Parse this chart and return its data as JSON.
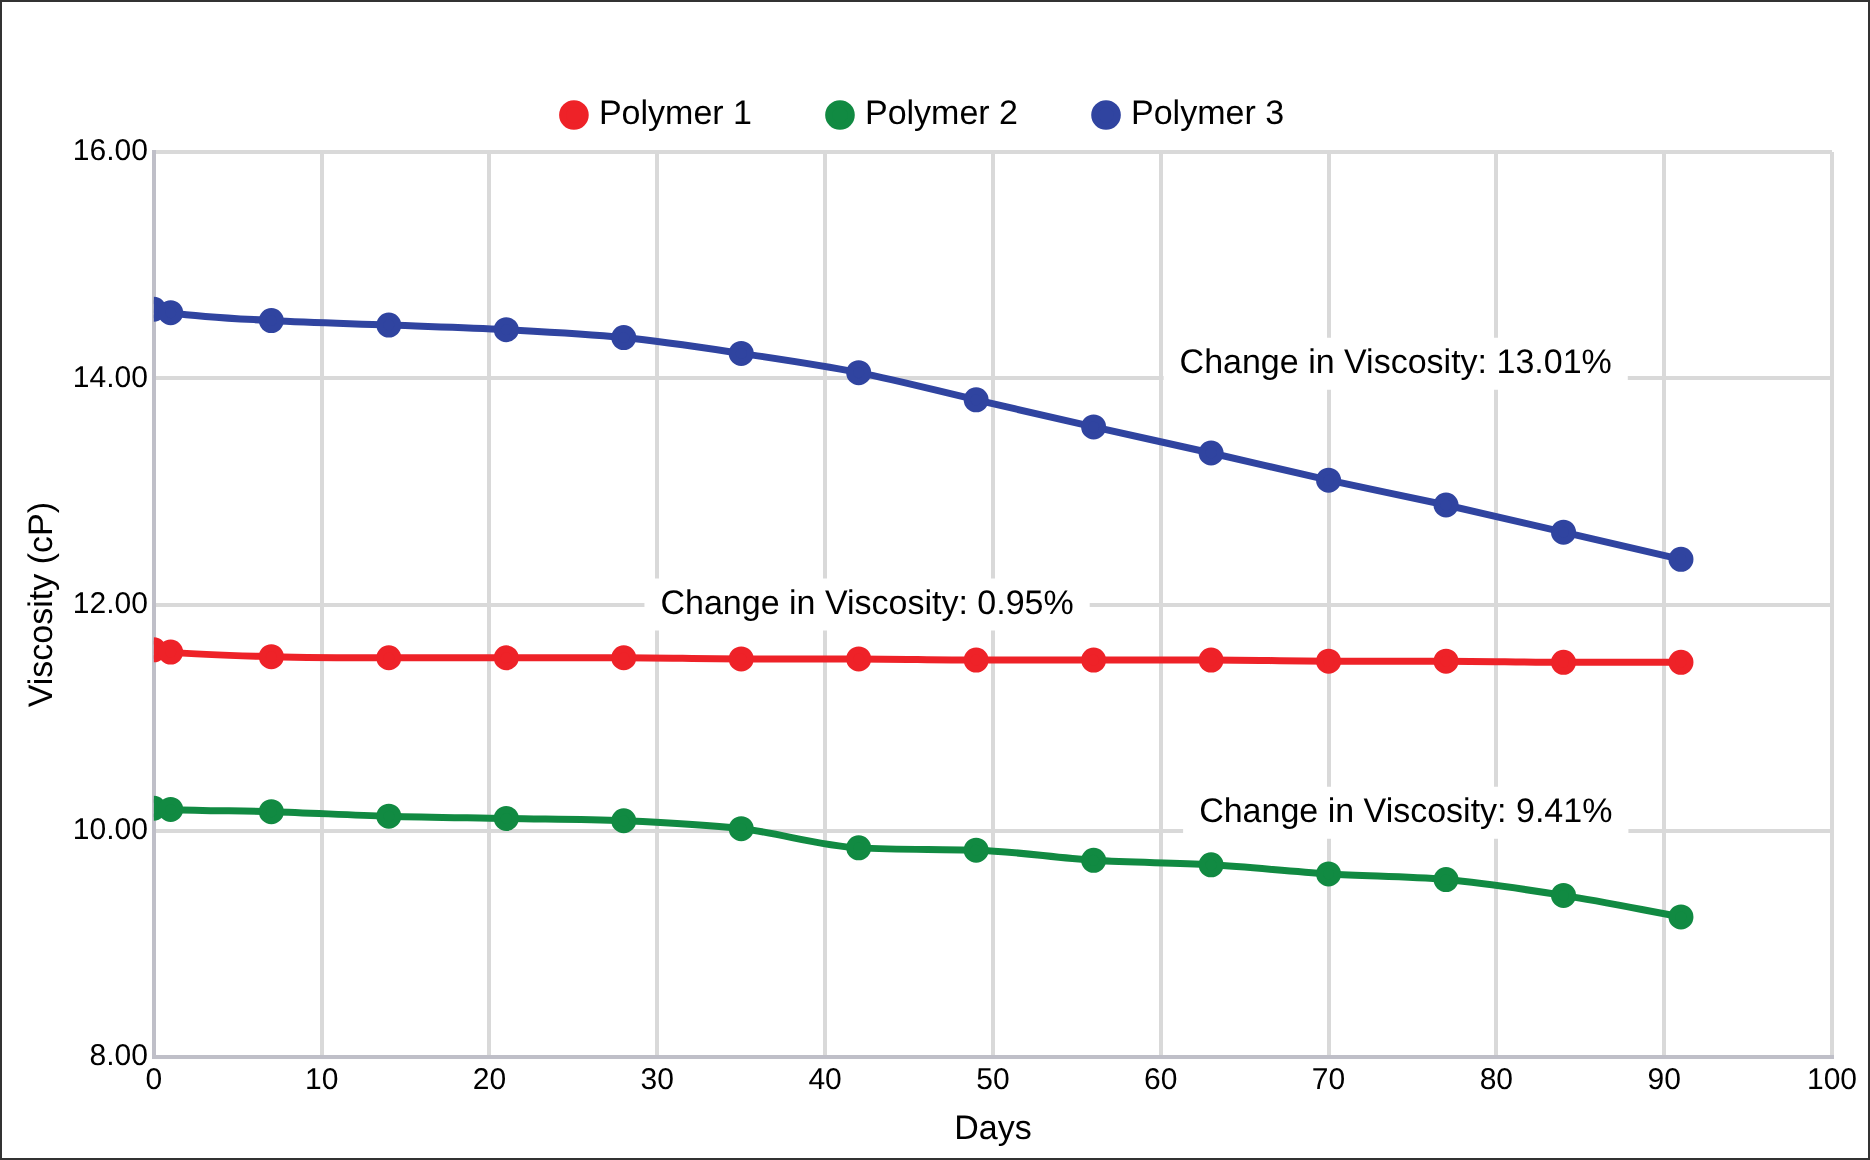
{
  "chart_data": {
    "type": "line",
    "xlabel": "Days",
    "ylabel": "Viscosity (cP)",
    "x": [
      0,
      1,
      7,
      14,
      21,
      28,
      35,
      42,
      49,
      56,
      63,
      70,
      77,
      84,
      91
    ],
    "series": [
      {
        "name": "Polymer 1",
        "color": "#ee2228",
        "values": [
          11.6,
          11.58,
          11.54,
          11.53,
          11.53,
          11.53,
          11.52,
          11.52,
          11.51,
          11.51,
          11.51,
          11.5,
          11.5,
          11.49,
          11.49
        ]
      },
      {
        "name": "Polymer 2",
        "color": "#118a42",
        "values": [
          10.2,
          10.19,
          10.17,
          10.13,
          10.11,
          10.09,
          10.02,
          9.85,
          9.83,
          9.74,
          9.7,
          9.62,
          9.57,
          9.43,
          9.24
        ]
      },
      {
        "name": "Polymer 3",
        "color": "#3044a0",
        "values": [
          14.61,
          14.58,
          14.51,
          14.47,
          14.43,
          14.36,
          14.22,
          14.05,
          13.81,
          13.57,
          13.34,
          13.1,
          12.88,
          12.64,
          12.4
        ]
      }
    ],
    "annotations": [
      "Change in Viscosity: 13.01%",
      "Change in Viscosity: 0.95%",
      "Change in Viscosity: 9.41%"
    ],
    "xlim": [
      0,
      100
    ],
    "xticks": [
      0,
      10,
      20,
      30,
      40,
      50,
      60,
      70,
      80,
      90,
      100
    ],
    "ylim": [
      8,
      16
    ],
    "yticks": [
      {
        "value": 8,
        "label": "8.00"
      },
      {
        "value": 10,
        "label": "10.00"
      },
      {
        "value": 12,
        "label": "12.00"
      },
      {
        "value": 14,
        "label": "14.00"
      },
      {
        "value": 16,
        "label": "16.00"
      }
    ],
    "grid": true,
    "legend": "top",
    "marker": "circle",
    "line_style": "solid"
  }
}
